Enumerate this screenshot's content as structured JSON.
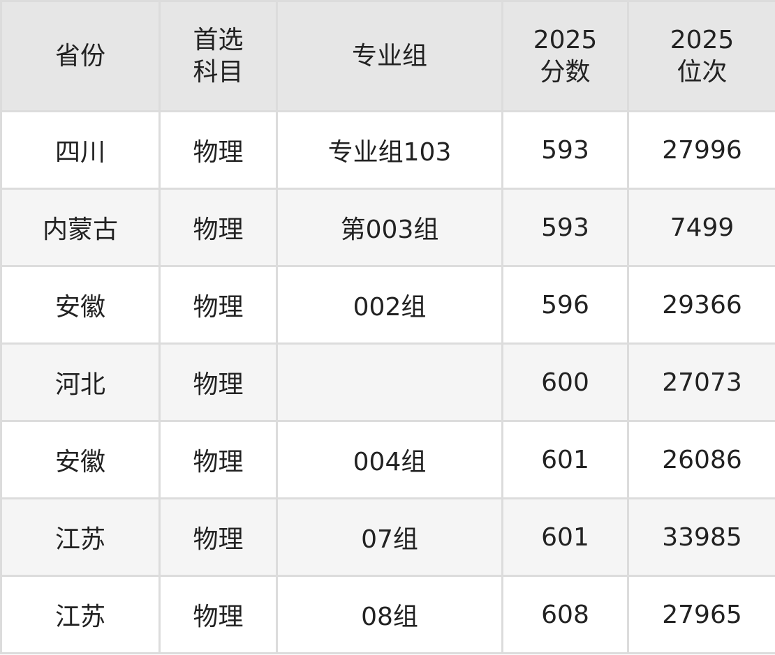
{
  "headers": [
    {
      "lines": [
        "省份"
      ]
    },
    {
      "lines": [
        "首选",
        "科目"
      ]
    },
    {
      "lines": [
        "专业组"
      ]
    },
    {
      "lines": [
        "2025",
        "分数"
      ]
    },
    {
      "lines": [
        "2025",
        "位次"
      ]
    }
  ],
  "rows": [
    [
      "四川",
      "物理",
      "专业组103",
      "593",
      "27996"
    ],
    [
      "内蒙古",
      "物理",
      "第003组",
      "593",
      "7499"
    ],
    [
      "安徽",
      "物理",
      "002组",
      "596",
      "29366"
    ],
    [
      "河北",
      "物理",
      "",
      "600",
      "27073"
    ],
    [
      "安徽",
      "物理",
      "004组",
      "601",
      "26086"
    ],
    [
      "江苏",
      "物理",
      "07组",
      "601",
      "33985"
    ],
    [
      "江苏",
      "物理",
      "08组",
      "608",
      "27965"
    ]
  ]
}
